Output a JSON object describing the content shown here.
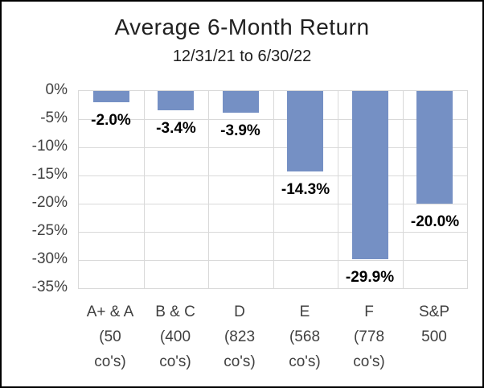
{
  "window": {
    "background_color": "#FFFFFF",
    "border_color": "#000000"
  },
  "chart_data": {
    "type": "bar",
    "title": "Average 6-Month Return",
    "subtitle": "12/31/21 to 6/30/22",
    "orientation": "vertical",
    "categories": [
      "A+ & A\n(50\nco's)",
      "B & C\n(400\nco's)",
      "D\n(823\nco's)",
      "E\n(568\nco's)",
      "F\n(778\nco's)",
      "S&P\n500"
    ],
    "values": [
      -2.0,
      -3.4,
      -3.9,
      -14.3,
      -29.9,
      -20.0
    ],
    "data_labels": [
      "-2.0%",
      "-3.4%",
      "-3.9%",
      "-14.3%",
      "-29.9%",
      "-20.0%"
    ],
    "y_tick_labels": [
      "0%",
      "-5%",
      "-10%",
      "-15%",
      "-20%",
      "-25%",
      "-30%",
      "-35%"
    ],
    "ylim": [
      -35,
      0
    ],
    "y_step": 5,
    "xlabel": "",
    "ylabel": "",
    "legend": "none",
    "grid": "both",
    "bar_color": "#7590C4",
    "grid_color": "#D9D9D9",
    "axis_text_color": "#404040",
    "data_label_color": "#000000",
    "title_color": "#202020"
  }
}
